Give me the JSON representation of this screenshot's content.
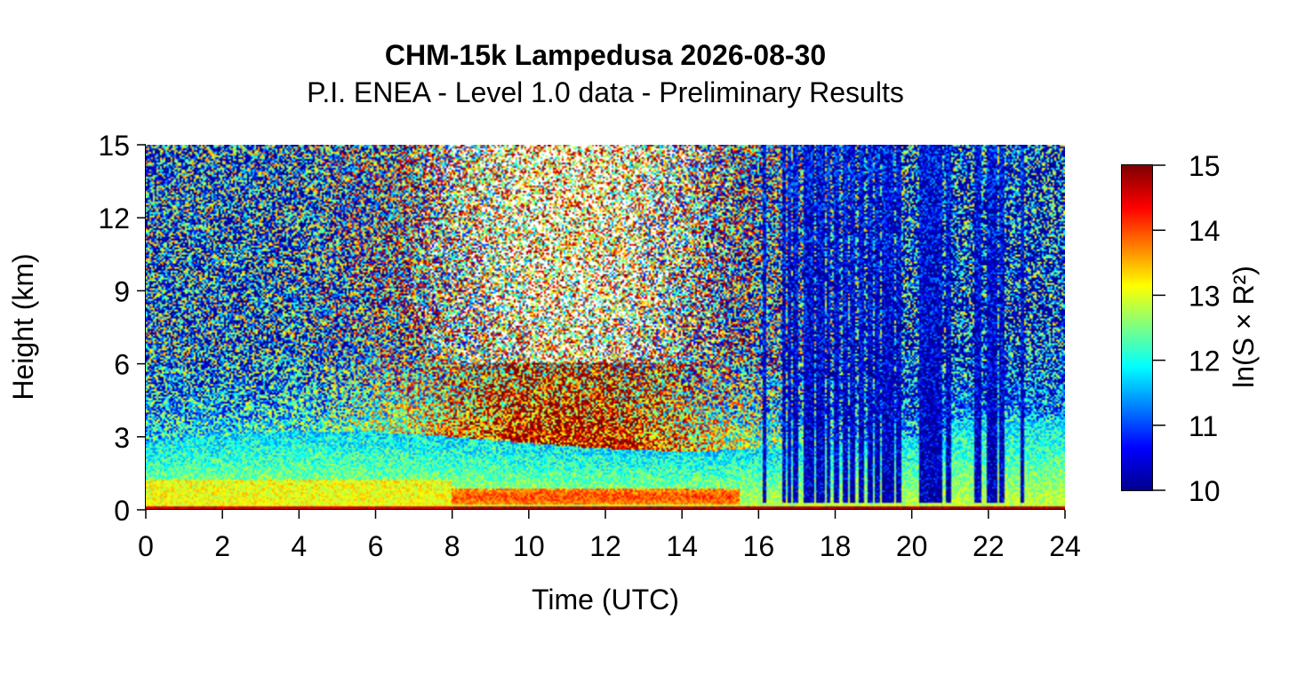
{
  "chart_data": {
    "type": "heatmap",
    "title": "CHM-15k Lampedusa 2026-08-30",
    "subtitle": "P.I. ENEA - Level 1.0 data - Preliminary Results",
    "xlabel": "Time (UTC)",
    "ylabel": "Height (km)",
    "xlim": [
      0,
      24
    ],
    "ylim": [
      0,
      15
    ],
    "xticks": [
      "0",
      "2",
      "4",
      "6",
      "8",
      "10",
      "12",
      "14",
      "16",
      "18",
      "20",
      "22",
      "24"
    ],
    "yticks": [
      "0",
      "3",
      "6",
      "9",
      "12",
      "15"
    ],
    "colorbar": {
      "label": "ln(S × R²)",
      "range": [
        10,
        15
      ],
      "ticks": [
        "10",
        "11",
        "12",
        "13",
        "14",
        "15"
      ],
      "colormap": [
        "#00008f",
        "#0000ff",
        "#00ffff",
        "#ffff00",
        "#ff0000",
        "#800000"
      ]
    },
    "features": [
      {
        "description": "surface aerosol layer",
        "x": [
          0,
          24
        ],
        "y": [
          0,
          1.5
        ],
        "value": 13.0
      },
      {
        "description": "boundary layer",
        "x": [
          0,
          24
        ],
        "y": [
          0,
          3.0
        ],
        "value": 12.2
      },
      {
        "description": "elevated layer",
        "x": [
          8,
          15.5
        ],
        "y": [
          0.2,
          1.0
        ],
        "value": 14.0
      },
      {
        "description": "daytime noise maximum",
        "x": [
          6,
          16
        ],
        "y": [
          4,
          15
        ],
        "value": 14.5
      },
      {
        "description": "low cloud interruptions",
        "x": [
          16,
          23
        ],
        "y": [
          0.2,
          15
        ],
        "value": 10.2
      }
    ]
  }
}
